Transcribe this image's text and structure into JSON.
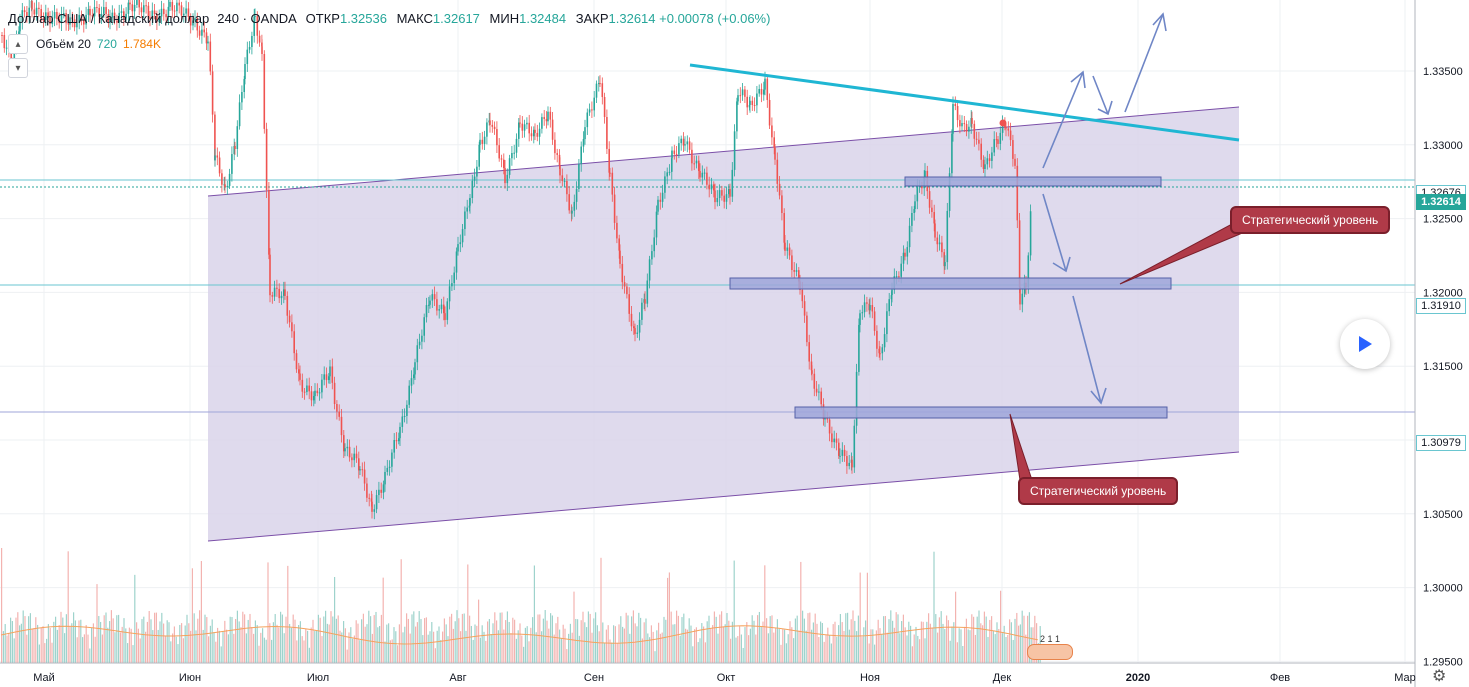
{
  "legend": {
    "symbol": "Доллар США / Канадский доллар",
    "interval": "240",
    "source": "OANDA",
    "open_label": "ОТКР",
    "open": "1.32536",
    "high_label": "МАКС",
    "high": "1.32617",
    "low_label": "МИН",
    "low": "1.32484",
    "close_label": "ЗАКР",
    "close": "1.32614",
    "change": "+0.00078 (+0.06%)"
  },
  "volume_legend": {
    "label": "Объём 20",
    "value": "720",
    "ma": "1.784K"
  },
  "price_axis": {
    "ticks": [
      "1.33500",
      "1.33000",
      "1.32500",
      "1.32000",
      "1.31500",
      "1.31000",
      "1.30500",
      "1.30000",
      "1.29500"
    ],
    "tags": [
      {
        "label": "1.32676",
        "price": 1.32676,
        "style": "outline"
      },
      {
        "label": "1.32614",
        "price": 1.32614,
        "style": "current"
      },
      {
        "label": "1.31910",
        "price": 1.3191,
        "style": "outline"
      },
      {
        "label": "1.30979",
        "price": 1.30979,
        "style": "outline"
      }
    ]
  },
  "time_axis": {
    "labels": [
      "Май",
      "Июн",
      "Июл",
      "Авг",
      "Сен",
      "Окт",
      "Ноя",
      "Дек",
      "2020",
      "Фев",
      "Мар"
    ]
  },
  "annotations": {
    "callout_1": "Стратегический уровень",
    "callout_2": "Стратегический уровень",
    "small_label": "2 1 1"
  },
  "colors": {
    "bull": "#26a69a",
    "bear": "#ef5350",
    "channel_fill": "#d9d3ea",
    "channel_line": "#7b4fa8",
    "trendline": "#1fb6d3",
    "level_fill": "#9fa6d9",
    "arrow": "#6f86c6",
    "callout": "#b03a48"
  },
  "icons": {
    "play": "play-icon",
    "settings": "gear-icon"
  }
}
